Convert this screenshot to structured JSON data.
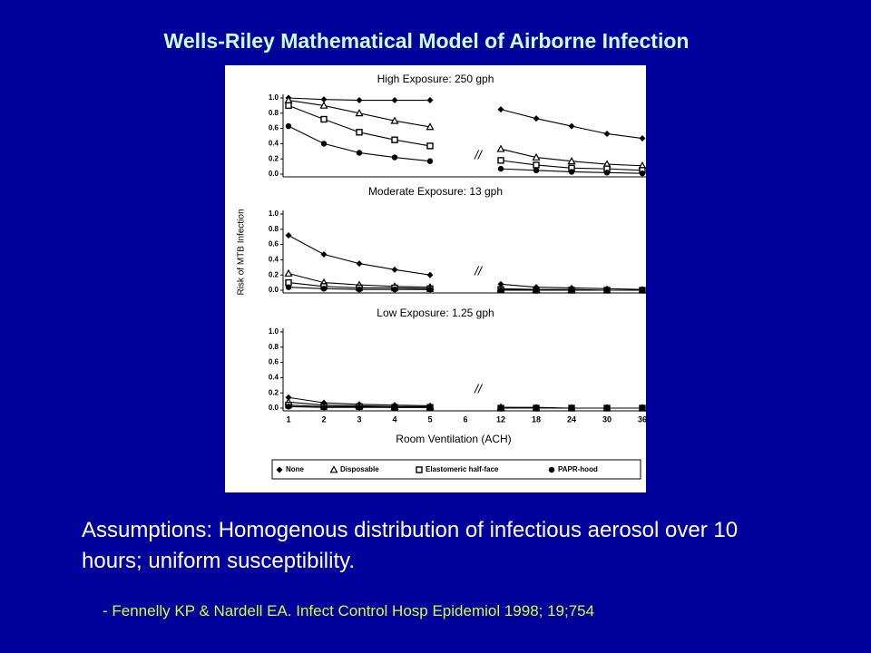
{
  "slide": {
    "title": "Wells-Riley Mathematical Model of Airborne Infection",
    "body": "Assumptions:  Homogenous distribution of infectious aerosol over 10 hours; uniform susceptibility.",
    "citation": "- Fennelly KP & Nardell EA.  Infect Control Hosp Epidemiol 1998; 19;754"
  },
  "chart_data": [
    {
      "type": "line",
      "title": "High Exposure: 250 gph",
      "ylim": [
        0,
        1
      ],
      "yticks": [
        {
          "value": 0,
          "label": "0.0"
        },
        0.2,
        0.4,
        0.6,
        0.8,
        {
          "value": 1,
          "label": "1.0"
        }
      ],
      "series": [
        {
          "marker": "diamond",
          "color": "#000000",
          "values": [
            1.0,
            0.98,
            0.97,
            0.97,
            0.97,
            null,
            0.85,
            0.73,
            0.63,
            0.53,
            0.47
          ]
        },
        {
          "marker": "triangle",
          "color": "#000000",
          "values": [
            0.97,
            0.9,
            0.8,
            0.7,
            0.62,
            null,
            0.33,
            0.22,
            0.17,
            0.13,
            0.11
          ]
        },
        {
          "marker": "square",
          "color": "#000000",
          "values": [
            0.9,
            0.72,
            0.55,
            0.45,
            0.37,
            null,
            0.18,
            0.12,
            0.08,
            0.07,
            0.05
          ]
        },
        {
          "marker": "circle",
          "color": "#000000",
          "values": [
            0.63,
            0.4,
            0.28,
            0.22,
            0.17,
            null,
            0.07,
            0.05,
            0.03,
            0.02,
            0.01
          ]
        }
      ]
    },
    {
      "type": "line",
      "title": "Moderate Exposure: 13 gph",
      "ylabel": "Risk of MTB Infection",
      "ylim": [
        0,
        1
      ],
      "yticks": [
        {
          "value": 0,
          "label": "0.0"
        },
        0.2,
        0.4,
        0.6,
        0.8,
        {
          "value": 1,
          "label": "1.0"
        }
      ],
      "series": [
        {
          "marker": "diamond",
          "color": "#000000",
          "values": [
            0.72,
            0.47,
            0.35,
            0.27,
            0.2,
            null,
            0.08,
            0.04,
            0.03,
            0.02,
            0.01
          ]
        },
        {
          "marker": "triangle",
          "color": "#000000",
          "values": [
            0.22,
            0.1,
            0.07,
            0.05,
            0.04,
            null,
            0.02,
            0.01,
            0.01,
            0,
            0
          ]
        },
        {
          "marker": "square",
          "color": "#000000",
          "values": [
            0.1,
            0.05,
            0.03,
            0.03,
            0.02,
            null,
            0.01,
            0,
            0,
            0,
            0
          ]
        },
        {
          "marker": "circle",
          "color": "#000000",
          "values": [
            0.04,
            0.02,
            0.01,
            0.01,
            0.01,
            null,
            0,
            0,
            0,
            0,
            0
          ]
        }
      ]
    },
    {
      "type": "line",
      "title": "Low Exposure: 1.25 gph",
      "xlabel": "Room Ventilation (ACH)",
      "ylim": [
        0,
        1
      ],
      "yticks": [
        {
          "value": 0,
          "label": "0.0"
        },
        0.2,
        0.4,
        0.6,
        0.8,
        {
          "value": 1,
          "label": "1.0"
        }
      ],
      "categories": [
        "1",
        "2",
        "3",
        "4",
        "5",
        "6",
        "12",
        "18",
        "24",
        "30",
        "36"
      ],
      "series": [
        {
          "name": "None",
          "marker": "diamond",
          "color": "#000000",
          "values": [
            0.14,
            0.07,
            0.05,
            0.04,
            0.03,
            null,
            0.01,
            0.01,
            0,
            0,
            0
          ]
        },
        {
          "name": "Disposable",
          "marker": "triangle",
          "color": "#000000",
          "values": [
            0.08,
            0.04,
            0.03,
            0.02,
            0.02,
            null,
            0.01,
            0,
            0,
            0,
            0
          ]
        },
        {
          "name": "Elastomeric half-face",
          "marker": "square",
          "color": "#000000",
          "values": [
            0.04,
            0.02,
            0.02,
            0.01,
            0.01,
            null,
            0,
            0,
            0,
            0,
            0
          ]
        },
        {
          "name": "PAPR-hood",
          "marker": "circle",
          "color": "#000000",
          "values": [
            0.02,
            0.01,
            0.01,
            0.01,
            0.01,
            null,
            0,
            0,
            0,
            0,
            0
          ]
        }
      ]
    }
  ]
}
